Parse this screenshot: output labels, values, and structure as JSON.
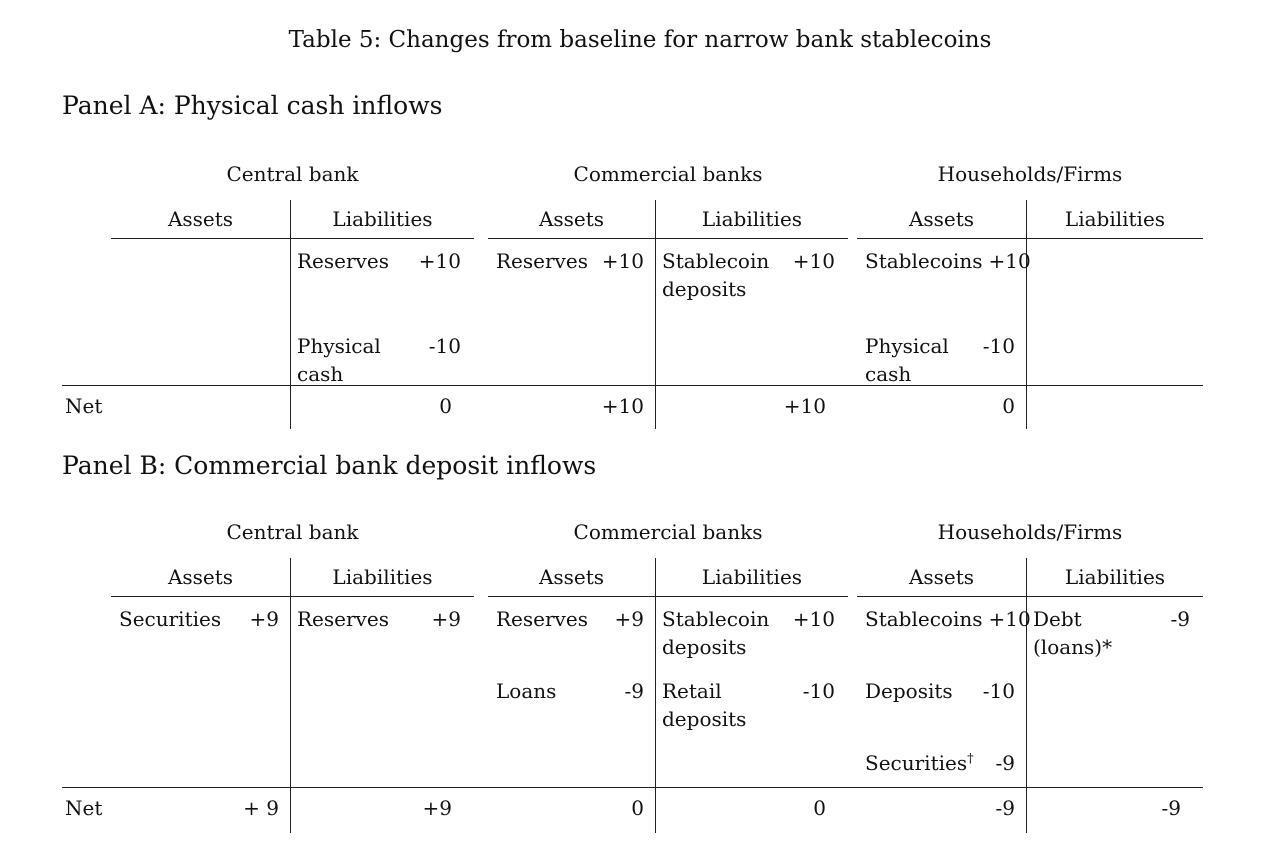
{
  "title": "Table 5: Changes from baseline for narrow bank stablecoins",
  "net_label": "Net",
  "panelA": {
    "heading": "Panel A: Physical cash inflows",
    "g1": {
      "title": "Central bank",
      "assets": "Assets",
      "liabilities": "Liabilities"
    },
    "g2": {
      "title": "Commercial banks",
      "assets": "Assets",
      "liabilities": "Liabilities"
    },
    "g3": {
      "title": "Households/Firms",
      "assets": "Assets",
      "liabilities": "Liabilities"
    },
    "rows": [
      {
        "ca": {
          "label": "",
          "value": ""
        },
        "cl": {
          "label": "Reserves",
          "value": "+10"
        },
        "ma": {
          "label": "Reserves",
          "value": "+10"
        },
        "ml": {
          "label": "Stablecoin\ndeposits",
          "value": "+10"
        },
        "ha": {
          "label": "Stablecoins",
          "value": "+10"
        },
        "hl": {
          "label": "",
          "value": ""
        }
      },
      {
        "ca": {
          "label": "",
          "value": ""
        },
        "cl": {
          "label": "Physical\ncash",
          "value": "-10"
        },
        "ma": {
          "label": "",
          "value": ""
        },
        "ml": {
          "label": "",
          "value": ""
        },
        "ha": {
          "label": "Physical\ncash",
          "value": "-10"
        },
        "hl": {
          "label": "",
          "value": ""
        }
      }
    ],
    "net": {
      "ca": "",
      "cl": "0",
      "ma": "+10",
      "ml": "+10",
      "ha": "0",
      "hl": ""
    }
  },
  "panelB": {
    "heading": "Panel B: Commercial bank deposit inflows",
    "g1": {
      "title": "Central bank",
      "assets": "Assets",
      "liabilities": "Liabilities"
    },
    "g2": {
      "title": "Commercial banks",
      "assets": "Assets",
      "liabilities": "Liabilities"
    },
    "g3": {
      "title": "Households/Firms",
      "assets": "Assets",
      "liabilities": "Liabilities"
    },
    "rows": [
      {
        "ca": {
          "label": "Securities",
          "value": "+9"
        },
        "cl": {
          "label": "Reserves",
          "value": "+9"
        },
        "ma": {
          "label": "Reserves",
          "value": "+9"
        },
        "ml": {
          "label": "Stablecoin\ndeposits",
          "value": "+10"
        },
        "ha": {
          "label": "Stablecoins",
          "value": "+10"
        },
        "hl": {
          "label": "Debt\n(loans)*",
          "value": "-9"
        }
      },
      {
        "ca": {
          "label": "",
          "value": ""
        },
        "cl": {
          "label": "",
          "value": ""
        },
        "ma": {
          "label": "Loans",
          "value": "-9"
        },
        "ml": {
          "label": "Retail\ndeposits",
          "value": "-10"
        },
        "ha": {
          "label": "Deposits",
          "value": "-10"
        },
        "hl": {
          "label": "",
          "value": ""
        }
      },
      {
        "ca": {
          "label": "",
          "value": ""
        },
        "cl": {
          "label": "",
          "value": ""
        },
        "ma": {
          "label": "",
          "value": ""
        },
        "ml": {
          "label": "",
          "value": ""
        },
        "ha": {
          "label": "Securities",
          "sup": "†",
          "value": "-9"
        },
        "hl": {
          "label": "",
          "value": ""
        }
      }
    ],
    "net": {
      "ca": "+ 9",
      "cl": "+9",
      "ma": "0",
      "ml": "0",
      "ha": "-9",
      "hl": "-9"
    }
  }
}
